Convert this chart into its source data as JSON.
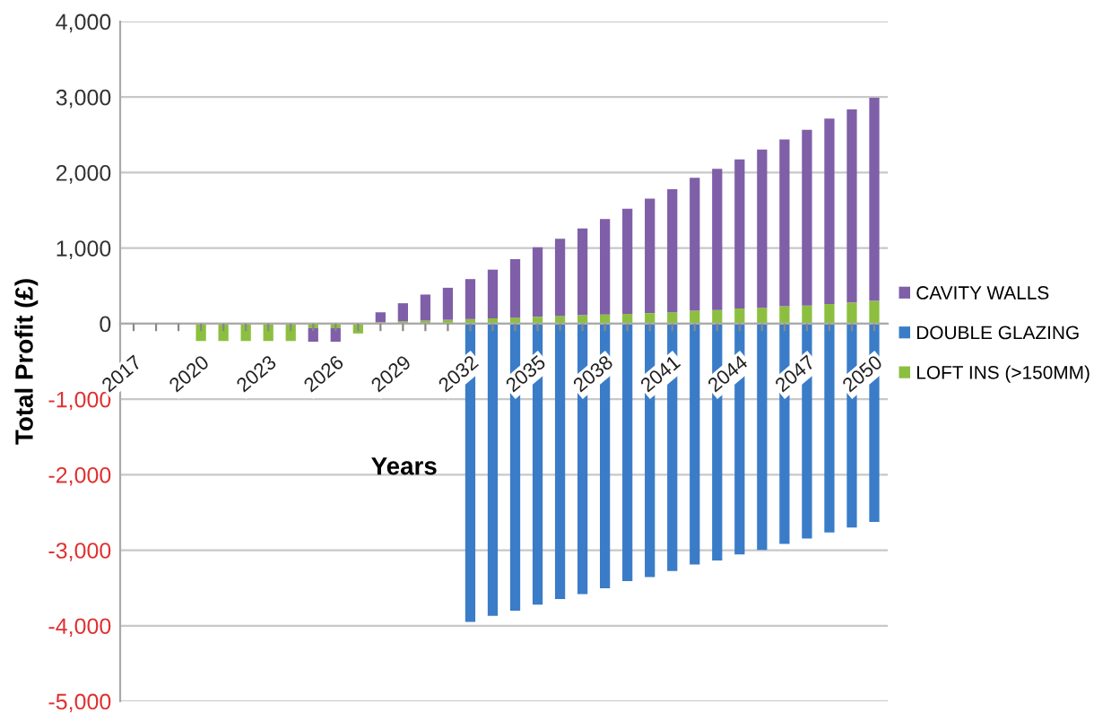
{
  "chart_data": {
    "type": "bar",
    "stacked": true,
    "xlabel": "Years",
    "ylabel": "Total Profit (£)",
    "categories": [
      "2017",
      null,
      null,
      "2020",
      null,
      null,
      "2023",
      null,
      null,
      "2026",
      null,
      null,
      "2029",
      null,
      null,
      "2032",
      null,
      null,
      "2035",
      null,
      null,
      "2038",
      null,
      null,
      "2041",
      null,
      null,
      "2044",
      null,
      null,
      "2047",
      null,
      null,
      "2050"
    ],
    "series": [
      {
        "name": "LOFT INS (>150MM)",
        "color": "#8cbf3f",
        "values": [
          null,
          null,
          null,
          -230,
          -230,
          -230,
          -230,
          -230,
          -60,
          -60,
          -130,
          20,
          30,
          40,
          50,
          60,
          70,
          80,
          90,
          100,
          110,
          120,
          130,
          140,
          150,
          170,
          180,
          200,
          210,
          230,
          240,
          260,
          280,
          300
        ]
      },
      {
        "name": "DOUBLE GLAZING",
        "color": "#3a7cc8",
        "values": [
          null,
          null,
          null,
          null,
          null,
          null,
          null,
          null,
          null,
          null,
          null,
          null,
          null,
          null,
          null,
          -3950,
          -3870,
          -3800,
          -3720,
          -3645,
          -3580,
          -3505,
          -3410,
          -3355,
          -3275,
          -3190,
          -3135,
          -3055,
          -2995,
          -2915,
          -2845,
          -2765,
          -2700,
          -2625
        ]
      },
      {
        "name": "CAVITY WALLS",
        "color": "#7f5fa8",
        "values": [
          null,
          null,
          null,
          null,
          null,
          null,
          null,
          null,
          -180,
          -180,
          null,
          130,
          240,
          345,
          425,
          530,
          645,
          775,
          920,
          1025,
          1150,
          1265,
          1390,
          1515,
          1630,
          1760,
          1870,
          1975,
          2095,
          2210,
          2325,
          2455,
          2555,
          2690
        ]
      }
    ],
    "ylim": [
      -5000,
      4000
    ],
    "yticks": [
      {
        "value": -5000,
        "label": "-5,000"
      },
      {
        "value": -4000,
        "label": "-4,000"
      },
      {
        "value": -3000,
        "label": "-3,000"
      },
      {
        "value": -2000,
        "label": "-2,000"
      },
      {
        "value": -1000,
        "label": "-1,000"
      },
      0,
      {
        "value": 1000,
        "label": "1,000"
      },
      {
        "value": 2000,
        "label": "2,000"
      },
      {
        "value": 3000,
        "label": "3,000"
      },
      {
        "value": 4000,
        "label": "4,000"
      }
    ],
    "grid": "y",
    "legend": "right"
  }
}
